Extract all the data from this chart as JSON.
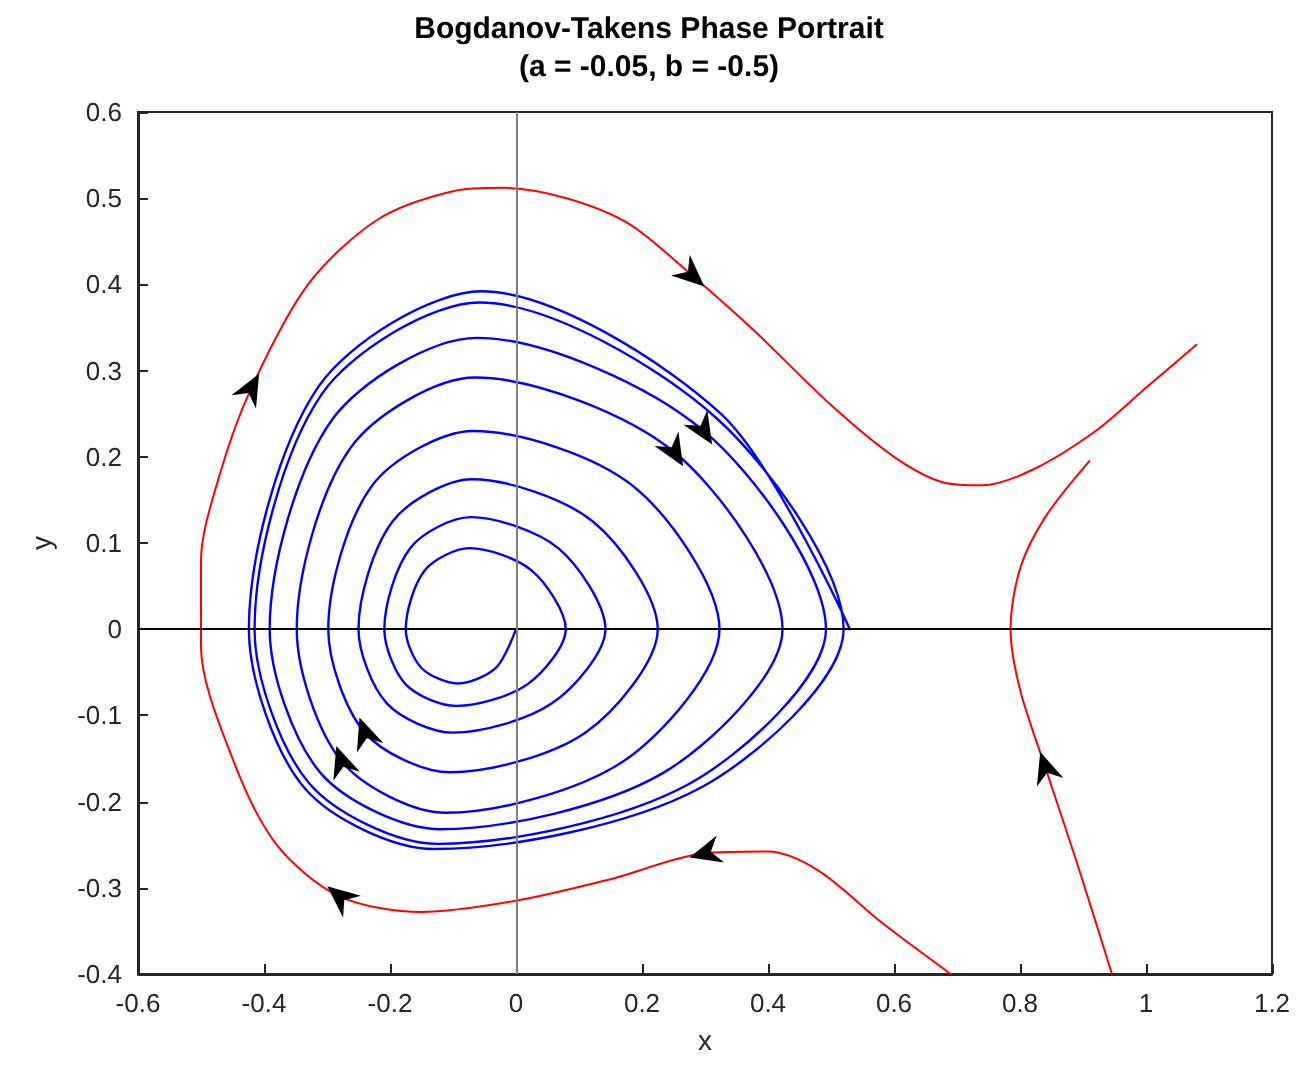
{
  "chart_data": {
    "type": "line",
    "title": "Bogdanov-Takens Phase Portrait",
    "subtitle": "(a = -0.05, b = -0.5)",
    "xlabel": "x",
    "ylabel": "y",
    "xlim": [
      -0.6,
      1.2
    ],
    "xticks": [
      -0.6,
      -0.4,
      -0.2,
      0,
      0.2,
      0.4,
      0.6,
      0.8,
      1,
      1.2
    ],
    "ylim": [
      -0.4,
      0.6
    ],
    "yticks": [
      -0.4,
      -0.3,
      -0.2,
      -0.1,
      0,
      0.1,
      0.2,
      0.3,
      0.4,
      0.5,
      0.6
    ],
    "grid": false,
    "marker": "none",
    "line_style": "solid",
    "ref_lines": [
      {
        "axis": "y",
        "value": 0,
        "color": "#000000"
      },
      {
        "axis": "x",
        "value": 0,
        "color": "#808080"
      }
    ],
    "series": [
      {
        "color": "#0000ff",
        "x": [
          0,
          -0.032,
          -0.092,
          -0.15,
          -0.175,
          -0.145,
          -0.074,
          0.025,
          0.079,
          0.018,
          -0.095,
          -0.175,
          -0.209,
          -0.168,
          -0.072,
          0.067,
          0.142,
          0.057,
          -0.1,
          -0.205,
          -0.25,
          -0.196,
          -0.07,
          0.122,
          0.225,
          0.11,
          -0.105,
          -0.24,
          -0.298,
          -0.229,
          -0.068,
          0.186,
          0.323,
          0.171,
          -0.112,
          -0.277,
          -0.348,
          -0.263,
          -0.065,
          0.252,
          0.423,
          0.233,
          -0.12,
          -0.31,
          -0.391,
          -0.292,
          -0.062,
          0.298,
          0.492,
          0.276,
          -0.125,
          -0.328,
          -0.415,
          -0.308,
          -0.058,
          0.318,
          0.52,
          0.293,
          -0.13,
          -0.336,
          -0.424,
          -0.313,
          -0.055,
          0.325,
          0.53
        ],
        "values": [
          0,
          -0.045,
          -0.063,
          -0.045,
          0,
          0.068,
          0.094,
          0.068,
          0,
          -0.064,
          -0.089,
          -0.064,
          0,
          0.094,
          0.13,
          0.094,
          0,
          -0.086,
          -0.12,
          -0.086,
          0,
          0.125,
          0.174,
          0.125,
          0,
          -0.12,
          -0.166,
          -0.12,
          0,
          0.166,
          0.23,
          0.166,
          0,
          -0.153,
          -0.213,
          -0.153,
          0,
          0.21,
          0.292,
          0.205,
          0,
          -0.167,
          -0.232,
          -0.167,
          0,
          0.243,
          0.338,
          0.23,
          0,
          -0.179,
          -0.249,
          -0.179,
          0,
          0.273,
          0.379,
          0.245,
          0,
          -0.184,
          -0.255,
          -0.184,
          0,
          0.282,
          0.392,
          0.25,
          0
        ]
      },
      {
        "color": "#ff0000",
        "x": [
          0.69,
          0.58,
          0.48,
          0.4,
          0.3,
          0.15,
          0.0,
          -0.15,
          -0.28,
          -0.38,
          -0.45,
          -0.5,
          -0.5,
          -0.47,
          -0.42,
          -0.33,
          -0.22,
          -0.1,
          -0.02,
          0.08,
          0.18,
          0.28,
          0.38,
          0.5,
          0.6,
          0.68,
          0.74,
          0.82,
          0.92,
          1.0,
          1.08
        ],
        "values": [
          -0.4,
          -0.34,
          -0.28,
          -0.258,
          -0.26,
          -0.29,
          -0.315,
          -0.328,
          -0.31,
          -0.25,
          -0.15,
          -0.02,
          0.08,
          0.18,
          0.28,
          0.4,
          0.475,
          0.508,
          0.512,
          0.5,
          0.47,
          0.41,
          0.345,
          0.26,
          0.2,
          0.17,
          0.167,
          0.185,
          0.23,
          0.28,
          0.33
        ]
      },
      {
        "color": "#ff0000",
        "x": [
          0.946,
          0.89,
          0.84,
          0.8,
          0.785,
          0.8,
          0.84,
          0.91
        ],
        "values": [
          -0.4,
          -0.27,
          -0.16,
          -0.07,
          0.0,
          0.07,
          0.13,
          0.195
        ]
      }
    ]
  }
}
